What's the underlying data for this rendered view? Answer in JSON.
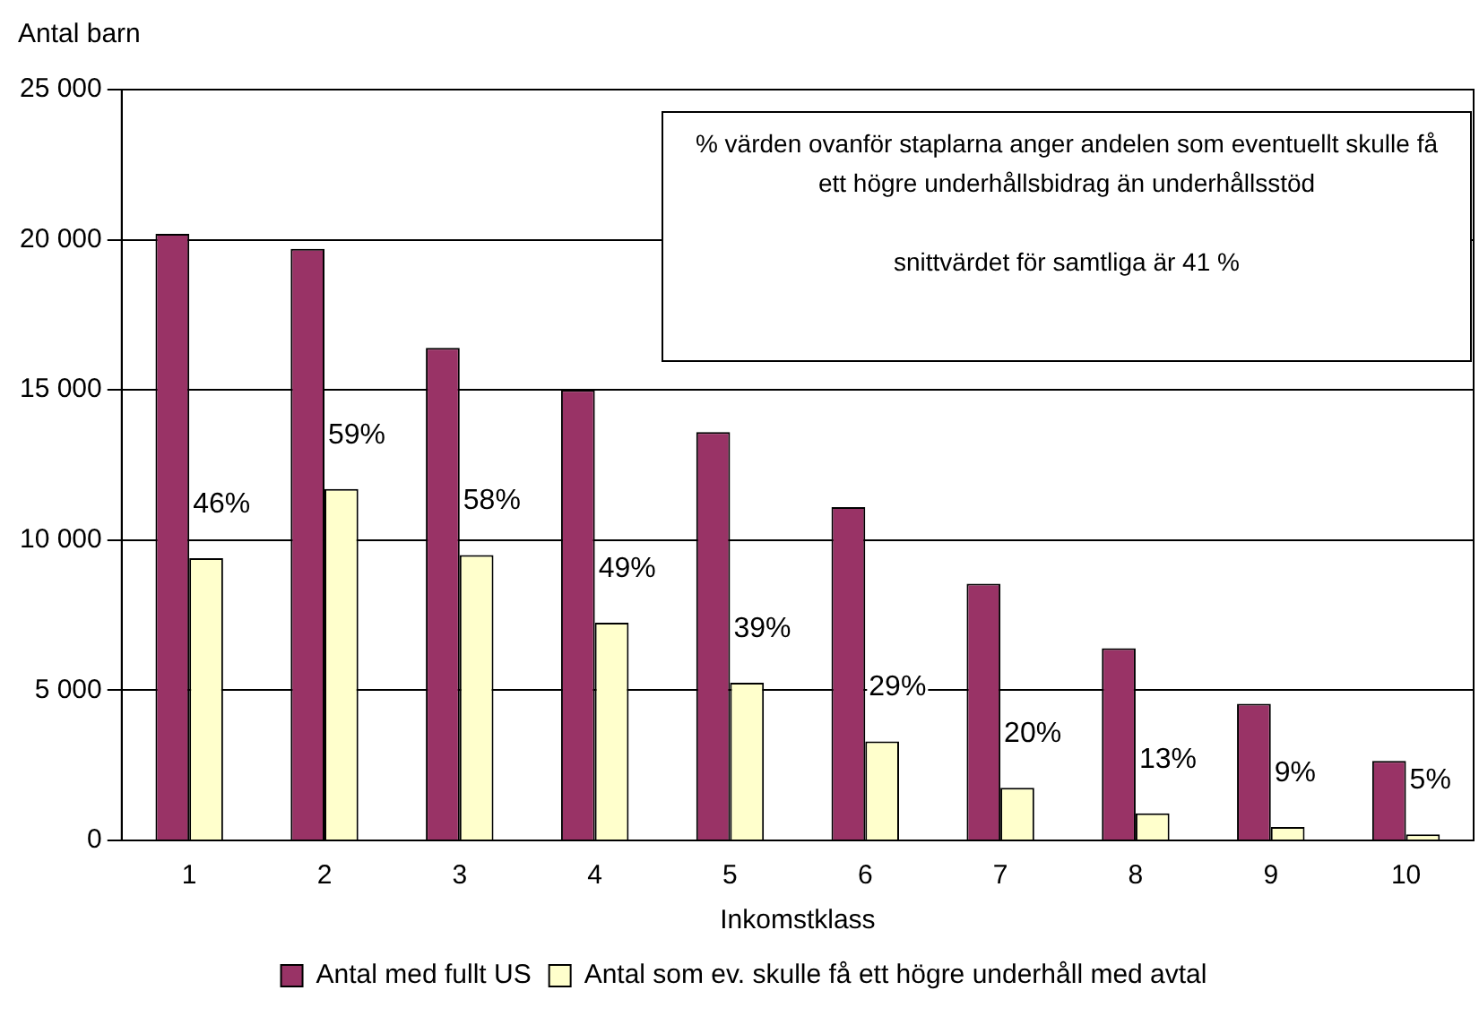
{
  "chart_data": {
    "type": "bar",
    "ylabel": "Antal barn",
    "xlabel": "Inkomstklass",
    "categories": [
      "1",
      "2",
      "3",
      "4",
      "5",
      "6",
      "7",
      "8",
      "9",
      "10"
    ],
    "series": [
      {
        "name": "Antal med fullt US",
        "color": "#993366",
        "values": [
          20200,
          19700,
          16400,
          15000,
          13600,
          11100,
          8550,
          6400,
          4550,
          2650
        ]
      },
      {
        "name": "Antal som ev. skulle få ett högre underhåll med avtal",
        "color": "#ffffcc",
        "values": [
          9400,
          11700,
          9500,
          7250,
          5250,
          3300,
          1750,
          900,
          450,
          200
        ]
      }
    ],
    "ylim": [
      0,
      25000
    ],
    "yticks": [
      {
        "value": 0,
        "label": "0"
      },
      {
        "value": 5000,
        "label": "5 000"
      },
      {
        "value": 10000,
        "label": "10 000"
      },
      {
        "value": 15000,
        "label": "15 000"
      },
      {
        "value": 20000,
        "label": "20 000"
      },
      {
        "value": 25000,
        "label": "25 000"
      }
    ],
    "grid": "y",
    "legend": "bottom",
    "annotations": [
      "% värden ovanför staplarna anger andelen som eventuellt skulle få ett högre underhållsbidrag än underhållsstöd",
      "snittvärdet för samtliga är 41 %",
      {
        "text": "46%",
        "x": "1",
        "y": 9400
      },
      {
        "text": "59%",
        "x": "2",
        "y": 11700
      },
      {
        "text": "58%",
        "x": "3",
        "y": 9500
      },
      {
        "text": "49%",
        "x": "4",
        "y": 7250
      },
      {
        "text": "39%",
        "x": "5",
        "y": 5250
      },
      {
        "text": "29%",
        "x": "6",
        "y": 3300
      },
      {
        "text": "20%",
        "x": "7",
        "y": 1750
      },
      {
        "text": "13%",
        "x": "8",
        "y": 900
      },
      {
        "text": "9%",
        "x": "9",
        "y": 450
      },
      {
        "text": "5%",
        "x": "10",
        "y": 200
      }
    ]
  }
}
